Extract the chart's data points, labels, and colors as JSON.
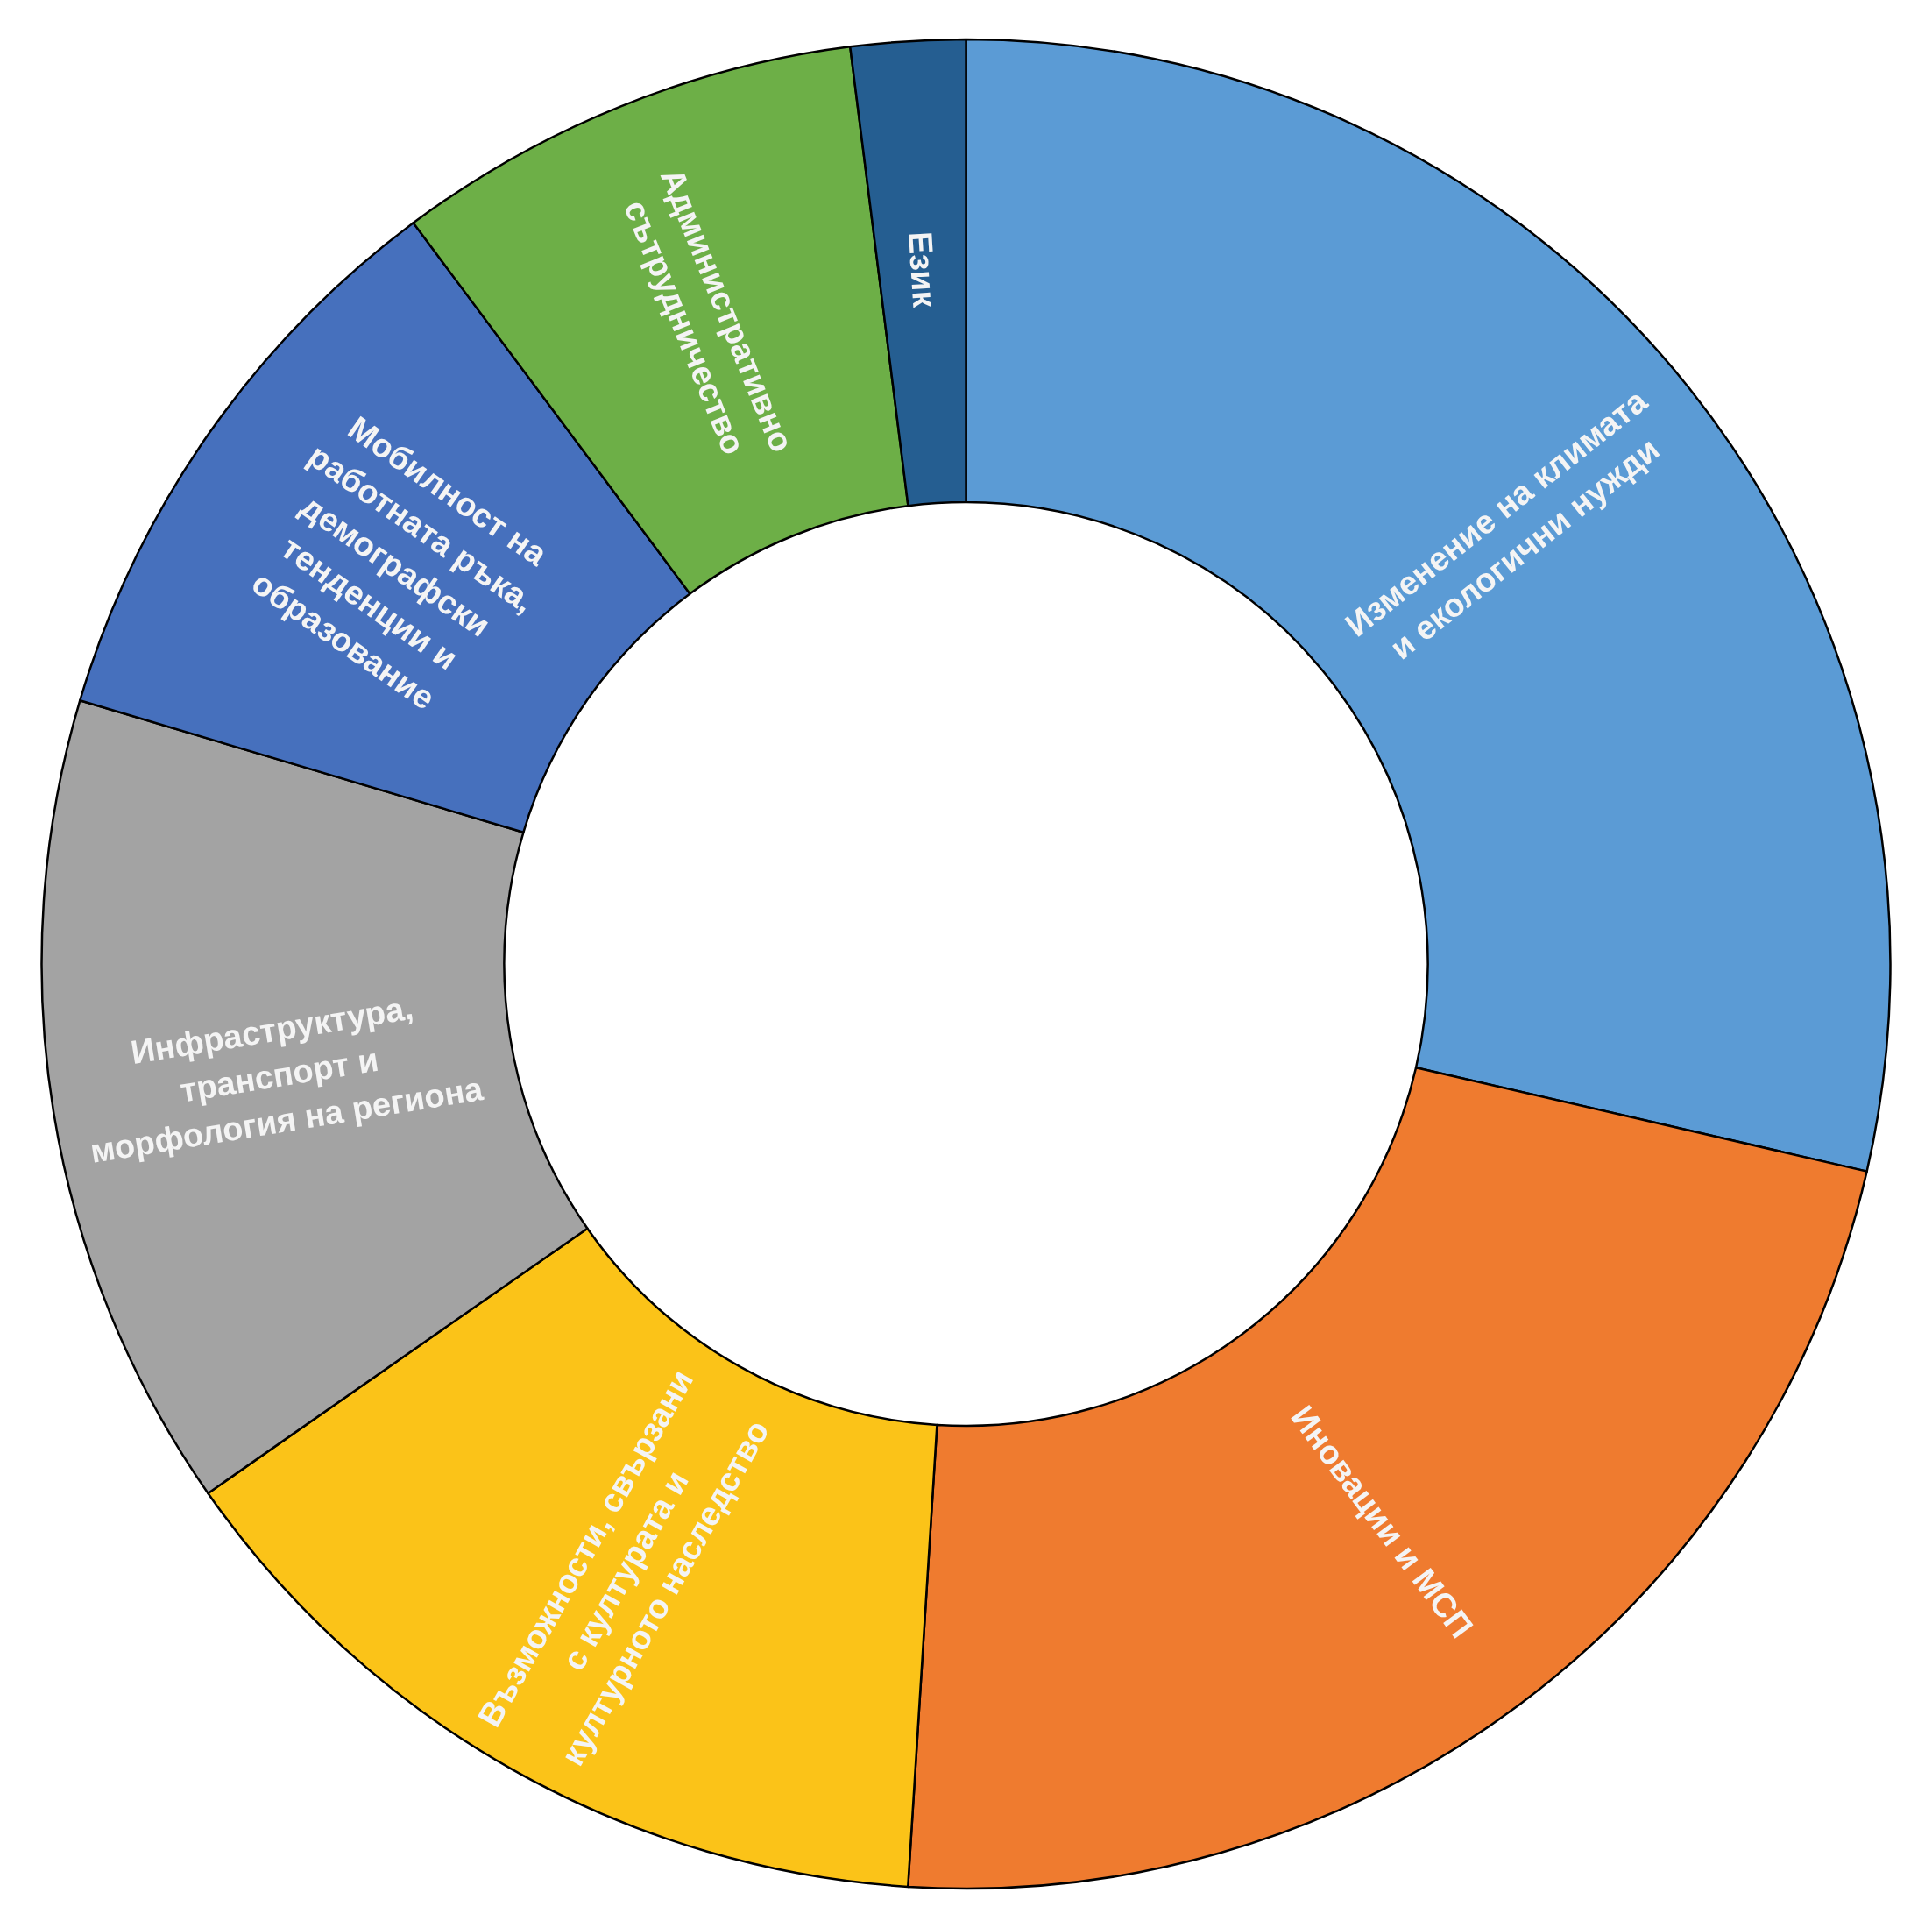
{
  "chart_data": {
    "type": "donut",
    "categories": [
      "Изменение на климата и екологични нужди",
      "Иновации и МСП",
      "Възможности, свързани с културата и културното наследство",
      "Инфраструктура, транспорт и морфология на региона",
      "Мобилност на работната ръка, демографски тенденции и образование",
      "Административно сътрудничество",
      "Език"
    ],
    "values": [
      28.6,
      22.4,
      14.3,
      14.3,
      10.2,
      8.2,
      2.0
    ],
    "colors": [
      "#5b9bd5",
      "#ef7b2f",
      "#fbc318",
      "#a3a3a3",
      "#4670bd",
      "#6daf47",
      "#255e91"
    ]
  }
}
